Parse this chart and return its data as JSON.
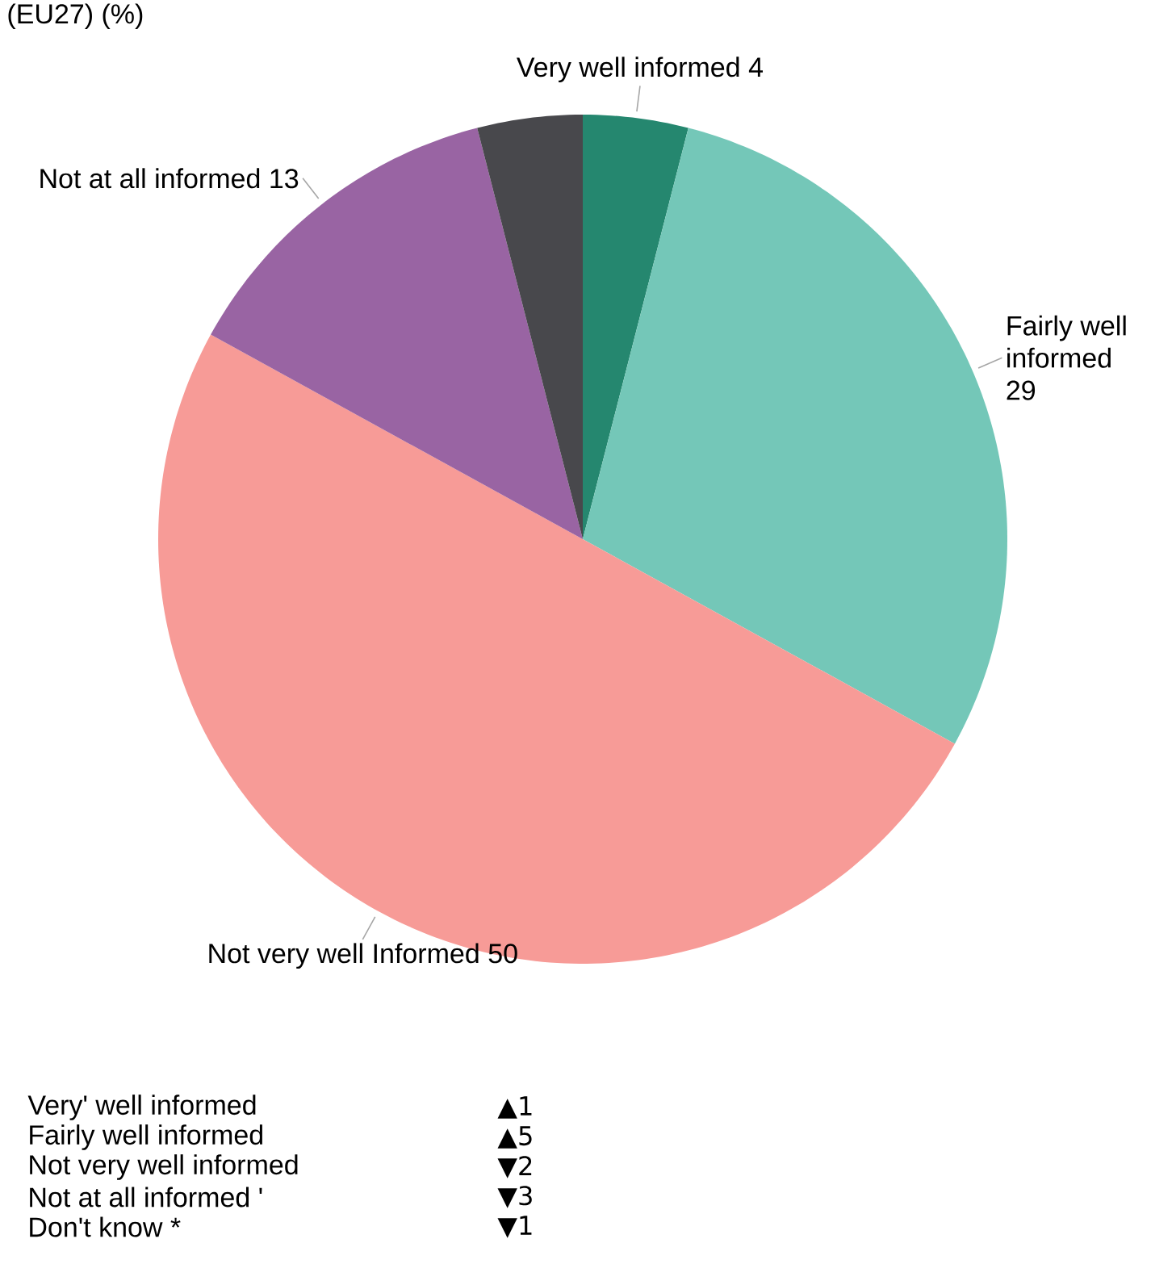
{
  "chart_data": {
    "type": "pie",
    "title": "(EU27) (%)",
    "categories": [
      "Very well informed",
      "Fairly well informed",
      "Not very well Informed",
      "Not at all informed",
      null
    ],
    "values": [
      4,
      29,
      50,
      13,
      4
    ],
    "value_labels": [
      "4",
      "29",
      "50",
      "13",
      null
    ],
    "colors": [
      "#25876f",
      "#74c7b8",
      "#f79b97",
      "#9964a3",
      "#48484c"
    ],
    "annotations": [
      "Very' well informed",
      "▲1",
      "Fairly well informed",
      "▲5",
      "Not very well informed",
      "▼2",
      "Not at all informed '",
      "▼3",
      "Don't know *",
      "▼1"
    ]
  }
}
